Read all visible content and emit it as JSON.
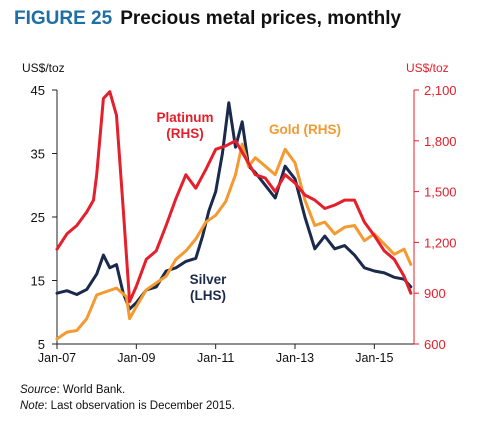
{
  "figure": {
    "number": "FIGURE 25",
    "title": "Precious metal prices, monthly"
  },
  "chart_data": {
    "type": "line",
    "left_axis": {
      "unit": "US$/toz",
      "ticks": [
        5,
        15,
        25,
        35,
        45
      ],
      "ylim": [
        5,
        45
      ],
      "color": "#111111"
    },
    "right_axis": {
      "unit": "US$/toz",
      "ticks": [
        600,
        900,
        1200,
        1500,
        1800,
        2100
      ],
      "tick_labels": [
        "600",
        "900",
        "1,200",
        "1,500",
        "1,800",
        "2,100"
      ],
      "ylim": [
        600,
        2100
      ],
      "color": "#e3202b"
    },
    "x_ticks": [
      {
        "label": "Jan-07",
        "x": 2007
      },
      {
        "label": "Jan-09",
        "x": 2009
      },
      {
        "label": "Jan-11",
        "x": 2011
      },
      {
        "label": "Jan-13",
        "x": 2013
      },
      {
        "label": "Jan-15",
        "x": 2015
      }
    ],
    "xlim": [
      2007,
      2016
    ],
    "series": [
      {
        "name": "Silver",
        "label_lines": [
          "Silver",
          "(LHS)"
        ],
        "axis": "left",
        "color": "#1b2a4a",
        "x": [
          2007,
          2007.25,
          2007.5,
          2007.75,
          2008,
          2008.17,
          2008.33,
          2008.5,
          2008.67,
          2008.83,
          2009,
          2009.25,
          2009.5,
          2009.75,
          2010,
          2010.25,
          2010.5,
          2010.67,
          2010.83,
          2011,
          2011.17,
          2011.33,
          2011.5,
          2011.67,
          2011.83,
          2012,
          2012.25,
          2012.5,
          2012.75,
          2013,
          2013.25,
          2013.5,
          2013.75,
          2014,
          2014.25,
          2014.5,
          2014.75,
          2015,
          2015.25,
          2015.5,
          2015.75,
          2015.92
        ],
        "y": [
          13,
          13.4,
          12.8,
          13.6,
          16,
          19,
          17,
          17.5,
          13,
          10.5,
          11.5,
          13.5,
          14,
          16.5,
          17,
          18,
          18.5,
          22,
          26,
          29,
          35,
          43,
          36,
          40,
          33,
          32,
          30,
          28,
          33,
          31,
          25,
          20,
          22,
          20,
          20.5,
          19,
          17,
          16.5,
          16.2,
          15.5,
          15.2,
          14
        ]
      },
      {
        "name": "Gold",
        "label_lines": [
          "Gold (RHS)"
        ],
        "axis": "right",
        "color": "#f39a31",
        "x": [
          2007,
          2007.25,
          2007.5,
          2007.75,
          2008,
          2008.25,
          2008.5,
          2008.75,
          2008.83,
          2009,
          2009.25,
          2009.5,
          2009.75,
          2010,
          2010.25,
          2010.5,
          2010.75,
          2011,
          2011.25,
          2011.5,
          2011.67,
          2011.83,
          2012,
          2012.25,
          2012.5,
          2012.75,
          2013,
          2013.25,
          2013.5,
          2013.75,
          2014,
          2014.25,
          2014.5,
          2014.75,
          2015,
          2015.25,
          2015.5,
          2015.75,
          2015.92
        ],
        "y": [
          630,
          670,
          680,
          750,
          890,
          910,
          930,
          880,
          750,
          820,
          920,
          960,
          1000,
          1100,
          1150,
          1220,
          1320,
          1360,
          1440,
          1600,
          1780,
          1650,
          1700,
          1650,
          1600,
          1750,
          1670,
          1450,
          1300,
          1320,
          1250,
          1290,
          1300,
          1210,
          1250,
          1190,
          1130,
          1160,
          1070
        ]
      },
      {
        "name": "Platinum",
        "label_lines": [
          "Platinum",
          "(RHS)"
        ],
        "axis": "right",
        "color": "#e3202b",
        "x": [
          2007,
          2007.25,
          2007.5,
          2007.75,
          2007.92,
          2008,
          2008.17,
          2008.33,
          2008.5,
          2008.67,
          2008.83,
          2009,
          2009.25,
          2009.5,
          2009.75,
          2010,
          2010.25,
          2010.5,
          2010.75,
          2011,
          2011.25,
          2011.5,
          2011.75,
          2012,
          2012.25,
          2012.5,
          2012.75,
          2013,
          2013.25,
          2013.5,
          2013.75,
          2014,
          2014.25,
          2014.5,
          2014.75,
          2015,
          2015.25,
          2015.5,
          2015.75,
          2015.92
        ],
        "y": [
          1160,
          1250,
          1300,
          1380,
          1450,
          1600,
          2050,
          2090,
          1950,
          1400,
          850,
          940,
          1100,
          1150,
          1300,
          1460,
          1600,
          1520,
          1630,
          1750,
          1770,
          1800,
          1700,
          1600,
          1580,
          1500,
          1600,
          1550,
          1480,
          1450,
          1400,
          1420,
          1450,
          1450,
          1320,
          1240,
          1150,
          1100,
          1000,
          900
        ]
      }
    ]
  },
  "footnotes": {
    "source_label": "Source",
    "source_text": ": World Bank.",
    "note_label": "Note",
    "note_text": ": Last observation is December 2015."
  }
}
